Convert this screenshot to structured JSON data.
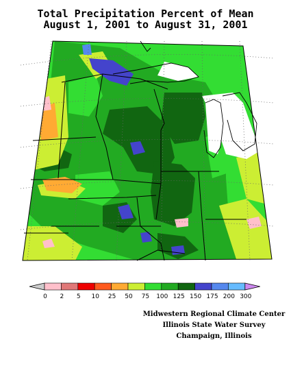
{
  "title": {
    "line1": "Total Precipitation Percent of Mean",
    "line2": "August 1, 2001 to August 31, 2001"
  },
  "legend": {
    "classes": [
      {
        "label": "0",
        "color": "#ffc0cb"
      },
      {
        "label": "2",
        "color": "#e07878"
      },
      {
        "label": "5",
        "color": "#ee0000"
      },
      {
        "label": "10",
        "color": "#ff5a1e"
      },
      {
        "label": "25",
        "color": "#ffaa33"
      },
      {
        "label": "50",
        "color": "#ccee33"
      },
      {
        "label": "75",
        "color": "#33dd33"
      },
      {
        "label": "100",
        "color": "#22aa22"
      },
      {
        "label": "125",
        "color": "#116611"
      },
      {
        "label": "150",
        "color": "#4444cc"
      },
      {
        "label": "175",
        "color": "#5588ee"
      },
      {
        "label": "200",
        "color": "#66bbff"
      },
      {
        "label": "300",
        "color": ""
      }
    ],
    "below_color": "#cccccc",
    "above_color": "#cc88ee"
  },
  "credits": [
    "Midwestern Regional Climate Center",
    "Illinois State Water Survey",
    "Champaign, Illinois"
  ]
}
